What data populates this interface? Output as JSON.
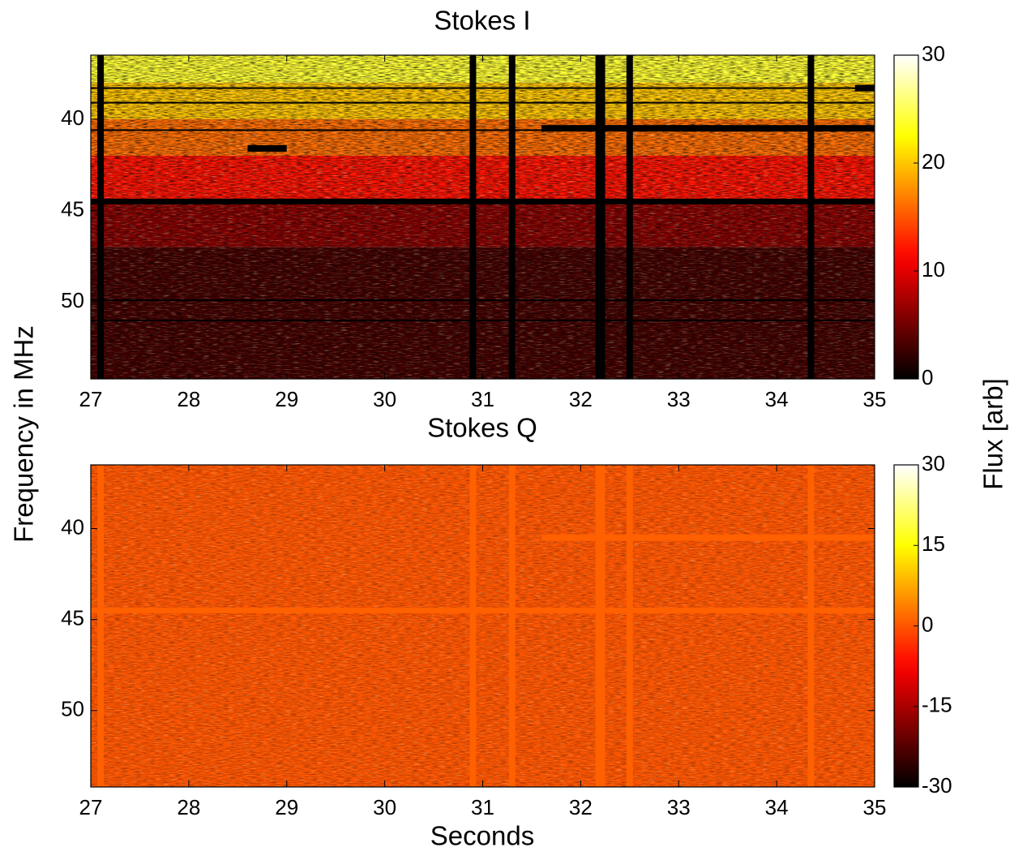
{
  "chart_data": [
    {
      "type": "heatmap",
      "title": "Stokes I",
      "ylabel": "Frequency in MHz",
      "colorbar_label": "Flux [arb]",
      "xlim": [
        27,
        35
      ],
      "xticks": [
        27,
        28,
        29,
        30,
        31,
        32,
        33,
        34,
        35
      ],
      "ylim": [
        36.5,
        54.2
      ],
      "y_direction": "reverse",
      "yticks": [
        40,
        45,
        50
      ],
      "band_edges": [
        36.5,
        38,
        40,
        42,
        44.5,
        47,
        54.2
      ],
      "values": [
        24,
        20,
        16,
        12,
        6,
        3
      ],
      "clim": [
        0,
        30
      ],
      "cticks": [
        0,
        10,
        20,
        30
      ],
      "colormap": "hot",
      "flag_value": 0,
      "flagged_times": [
        27.1,
        30.9,
        31.3,
        32.2,
        32.5,
        34.35
      ],
      "flagged_freqs": [
        38.3,
        39.1,
        40.6,
        44.5,
        49.9,
        51.0
      ],
      "flagged_blocks": [
        [
          28.6,
          29.0,
          41.6
        ],
        [
          31.6,
          35,
          40.5
        ],
        [
          34.8,
          35,
          38.3
        ]
      ]
    },
    {
      "type": "heatmap",
      "title": "Stokes Q",
      "xlabel": "Seconds",
      "xlim": [
        27,
        35
      ],
      "xticks": [
        27,
        28,
        29,
        30,
        31,
        32,
        33,
        34,
        35
      ],
      "ylim": [
        36.5,
        54.2
      ],
      "y_direction": "reverse",
      "yticks": [
        40,
        45,
        50
      ],
      "band_edges": [
        36.5,
        44.5,
        54.2
      ],
      "values": [
        0,
        0
      ],
      "clim": [
        -30,
        30
      ],
      "cticks": [
        -30,
        -15,
        0,
        15,
        30
      ],
      "colormap": "hot",
      "flag_value": 1,
      "flagged_times": [
        27.1,
        30.9,
        31.3,
        32.2,
        32.5,
        34.35
      ],
      "flagged_freqs": [
        44.5
      ],
      "flagged_blocks": [
        [
          31.6,
          35,
          40.5
        ]
      ]
    }
  ]
}
